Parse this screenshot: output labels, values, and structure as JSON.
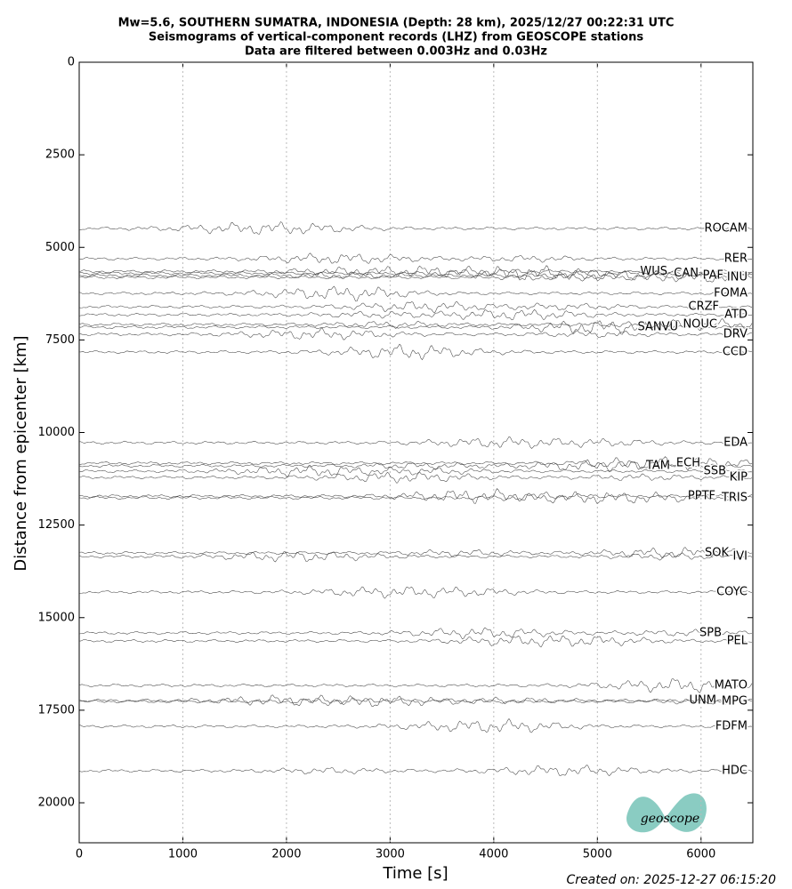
{
  "chart_data": {
    "type": "seismogram",
    "title": [
      "Mw=5.6, SOUTHERN SUMATRA, INDONESIA (Depth: 28 km), 2025/12/27 00:22:31 UTC",
      "Seismograms of vertical-component records (LHZ) from GEOSCOPE stations",
      "Data are filtered between 0.003Hz and 0.03Hz"
    ],
    "xlabel": "Time [s]",
    "ylabel": "Distance from epicenter [km]",
    "xlim": [
      0,
      6500
    ],
    "ylim": [
      0,
      21080
    ],
    "invert_y": true,
    "xticks": [
      0,
      1000,
      2000,
      3000,
      4000,
      5000,
      6000
    ],
    "yticks": [
      0,
      2500,
      5000,
      7500,
      10000,
      12500,
      15000,
      17500,
      20000
    ],
    "grid_x": true,
    "color": "#444444",
    "stations": [
      {
        "name": "ROCAM",
        "distance": 4490
      },
      {
        "name": "RER",
        "distance": 5306
      },
      {
        "name": "WUS",
        "distance": 5650
      },
      {
        "name": "CAN",
        "distance": 5700
      },
      {
        "name": "PAF",
        "distance": 5760
      },
      {
        "name": "INU",
        "distance": 5810
      },
      {
        "name": "FOMA",
        "distance": 6242
      },
      {
        "name": "CRZF",
        "distance": 6603
      },
      {
        "name": "ATD",
        "distance": 6819
      },
      {
        "name": "SANVU",
        "distance": 7155
      },
      {
        "name": "NOUC",
        "distance": 7083
      },
      {
        "name": "DRV",
        "distance": 7347
      },
      {
        "name": "CCD",
        "distance": 7827
      },
      {
        "name": "EDA",
        "distance": 10276
      },
      {
        "name": "TAM",
        "distance": 10900
      },
      {
        "name": "ECH",
        "distance": 10828
      },
      {
        "name": "SSB",
        "distance": 11044
      },
      {
        "name": "KIP",
        "distance": 11212
      },
      {
        "name": "PPTF",
        "distance": 11717
      },
      {
        "name": "TRIS",
        "distance": 11765
      },
      {
        "name": "SOK",
        "distance": 13253
      },
      {
        "name": "IVI",
        "distance": 13349
      },
      {
        "name": "COYC",
        "distance": 14310
      },
      {
        "name": "SPB",
        "distance": 15414
      },
      {
        "name": "PEL",
        "distance": 15630
      },
      {
        "name": "MATO",
        "distance": 16831
      },
      {
        "name": "UNM",
        "distance": 17239
      },
      {
        "name": "MPG",
        "distance": 17263
      },
      {
        "name": "FDFM",
        "distance": 17935
      },
      {
        "name": "HDC",
        "distance": 19136
      }
    ],
    "footer": "Created on: 2025-12-27 06:15:20",
    "logo": "geoscope"
  }
}
